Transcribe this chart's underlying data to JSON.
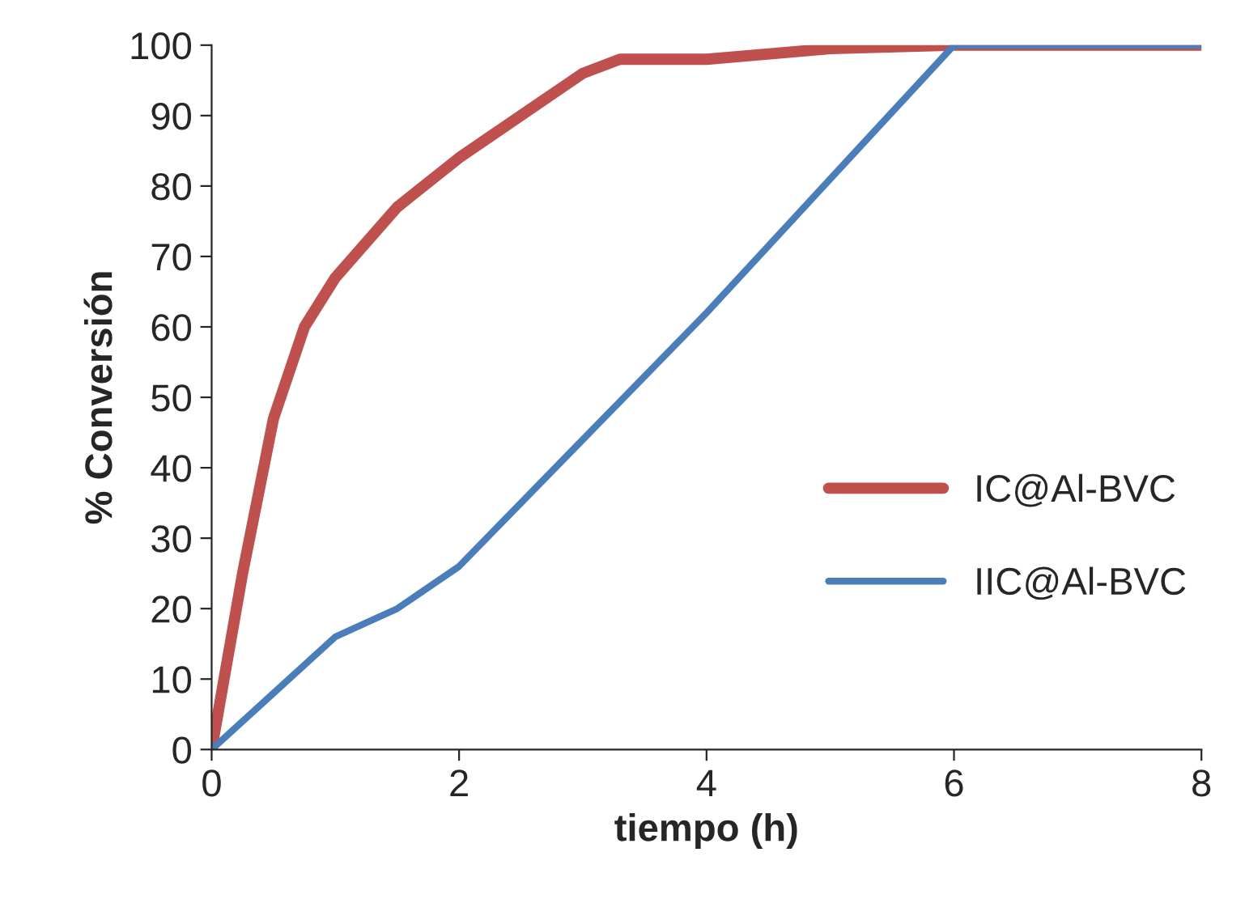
{
  "chart_data": {
    "type": "line",
    "xlabel": "tiempo (h)",
    "ylabel": "% Conversión",
    "series": [
      {
        "name": "IC@Al-BVC",
        "color": "#c0504d",
        "x": [
          0,
          0.25,
          0.5,
          0.75,
          1,
          1.5,
          2,
          2.5,
          3,
          3.3,
          3.5,
          4,
          5,
          6,
          7,
          8
        ],
        "values": [
          0,
          25,
          47,
          60,
          67,
          77,
          84,
          90,
          96,
          98,
          98,
          98,
          99.5,
          100,
          100,
          100
        ]
      },
      {
        "name": "IIC@Al-BVC",
        "color": "#4a7ebb",
        "x": [
          0,
          0.5,
          1,
          1.5,
          2,
          3,
          4,
          5,
          6,
          7,
          8
        ],
        "values": [
          0,
          8,
          16,
          20,
          26,
          44,
          62,
          81,
          100,
          100,
          100
        ]
      }
    ],
    "xlim": [
      0,
      8
    ],
    "xticks": [
      0,
      2,
      4,
      6,
      8
    ],
    "ylim": [
      0,
      100
    ],
    "yticks": [
      0,
      10,
      20,
      30,
      40,
      50,
      60,
      70,
      80,
      90,
      100
    ],
    "grid": false,
    "legend": "right",
    "marker": "none",
    "line_style": "solid"
  }
}
